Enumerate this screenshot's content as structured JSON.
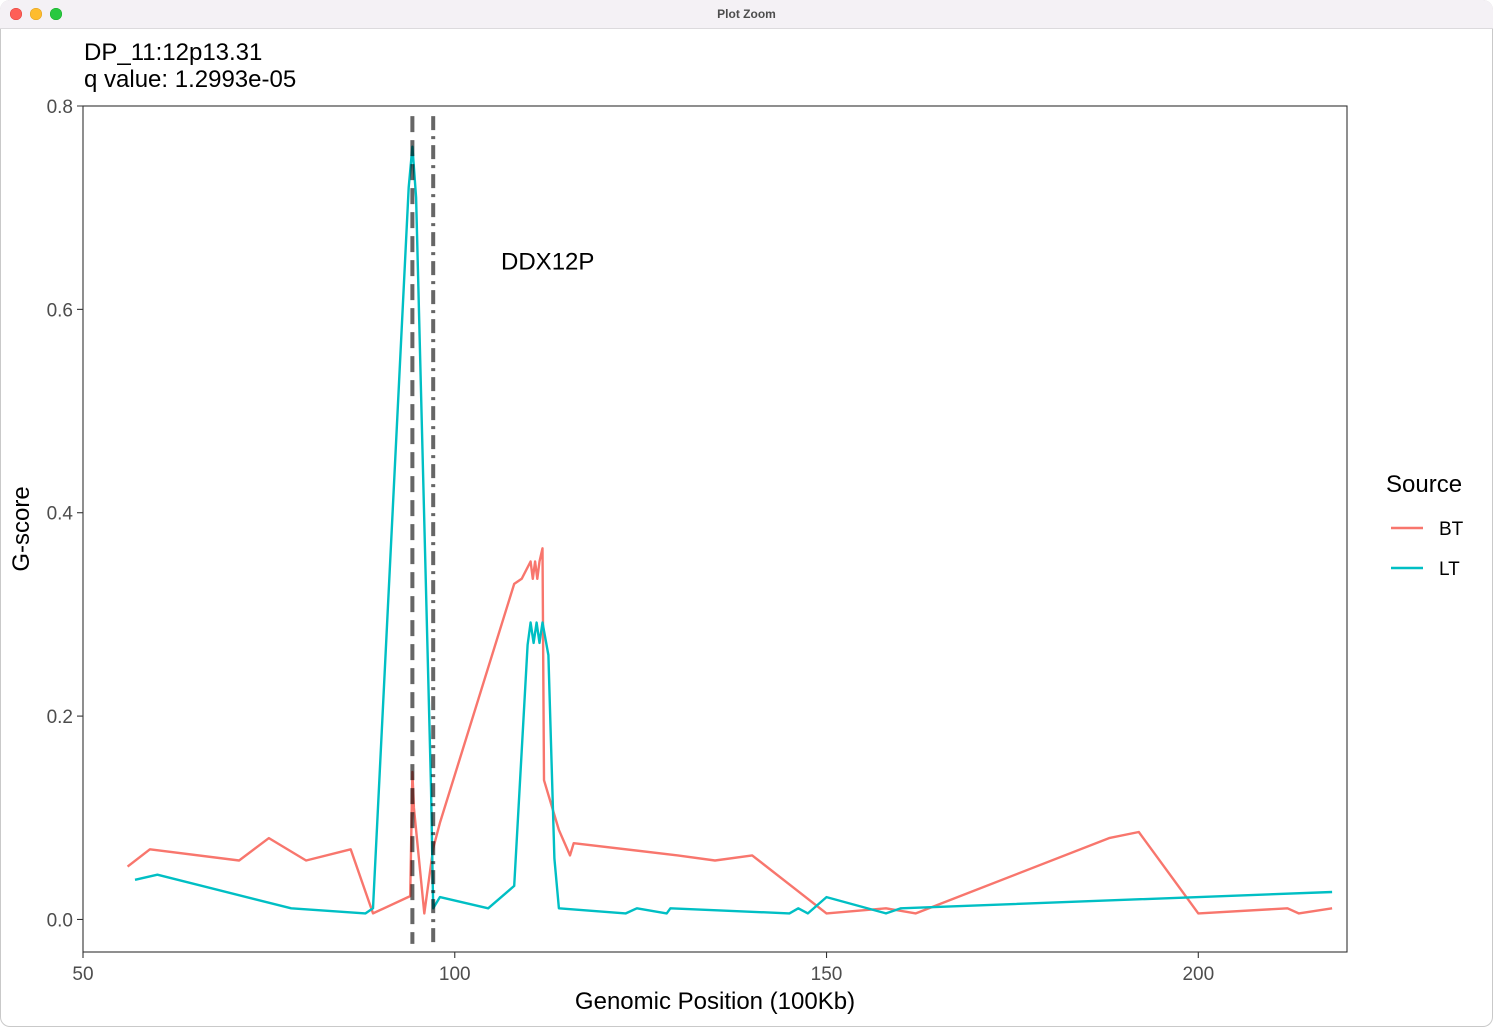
{
  "window": {
    "title": "Plot Zoom"
  },
  "chart_data": {
    "type": "line",
    "title": "DP_11:12p13.31",
    "subtitle": "q value: 1.2993e-05",
    "xlabel": "Genomic Position (100Kb)",
    "ylabel": "G-score",
    "xlim": [
      50,
      220
    ],
    "ylim": [
      -0.032,
      0.8
    ],
    "xticks": [
      50,
      100,
      150,
      200
    ],
    "yticks": [
      0.0,
      0.2,
      0.4,
      0.6,
      0.8
    ],
    "xtick_labels": [
      "50",
      "100",
      "150",
      "200"
    ],
    "ytick_labels": [
      "0.0",
      "0.2",
      "0.4",
      "0.6",
      "0.8"
    ],
    "grid": false,
    "legend": {
      "title": "Source",
      "position": "right"
    },
    "annotation": {
      "text": "DDX12P",
      "x": 112.5,
      "y": 0.648
    },
    "vlines": [
      {
        "x": 94.3,
        "style": "dashed"
      },
      {
        "x": 97.1,
        "style": "dotdash"
      }
    ],
    "series": [
      {
        "name": "BT",
        "color": "#F8766D",
        "x": [
          56,
          59,
          71,
          75,
          80,
          86,
          89,
          94,
          94.3,
          94.5,
          95.9,
          97.1,
          98,
          108,
          109,
          110.2,
          110.5,
          110.8,
          111.1,
          111.4,
          111.8,
          112,
          114,
          115.5,
          116,
          130,
          135,
          140,
          150,
          158,
          162,
          188,
          192,
          200,
          212,
          213.5,
          218
        ],
        "y": [
          0.052,
          0.069,
          0.058,
          0.08,
          0.058,
          0.069,
          0.006,
          0.023,
          0.145,
          0.11,
          0.006,
          0.07,
          0.095,
          0.33,
          0.335,
          0.352,
          0.335,
          0.352,
          0.335,
          0.352,
          0.365,
          0.137,
          0.088,
          0.063,
          0.075,
          0.063,
          0.058,
          0.063,
          0.006,
          0.011,
          0.006,
          0.08,
          0.086,
          0.006,
          0.011,
          0.006,
          0.011
        ]
      },
      {
        "name": "LT",
        "color": "#00BFC4",
        "x": [
          57,
          60,
          78,
          88,
          89,
          93.8,
          94.3,
          94.8,
          96.8,
          97.1,
          98,
          104.5,
          108,
          109.8,
          110.2,
          110.6,
          111,
          111.4,
          111.8,
          112.6,
          113.4,
          114,
          123,
          124.5,
          128.5,
          129,
          145,
          146.2,
          147.5,
          150,
          158,
          160,
          218
        ],
        "y": [
          0.039,
          0.044,
          0.011,
          0.006,
          0.011,
          0.72,
          0.76,
          0.71,
          0.13,
          0.011,
          0.022,
          0.011,
          0.033,
          0.27,
          0.292,
          0.272,
          0.292,
          0.272,
          0.292,
          0.26,
          0.06,
          0.011,
          0.006,
          0.011,
          0.006,
          0.011,
          0.006,
          0.011,
          0.006,
          0.022,
          0.006,
          0.011,
          0.027
        ]
      }
    ]
  }
}
